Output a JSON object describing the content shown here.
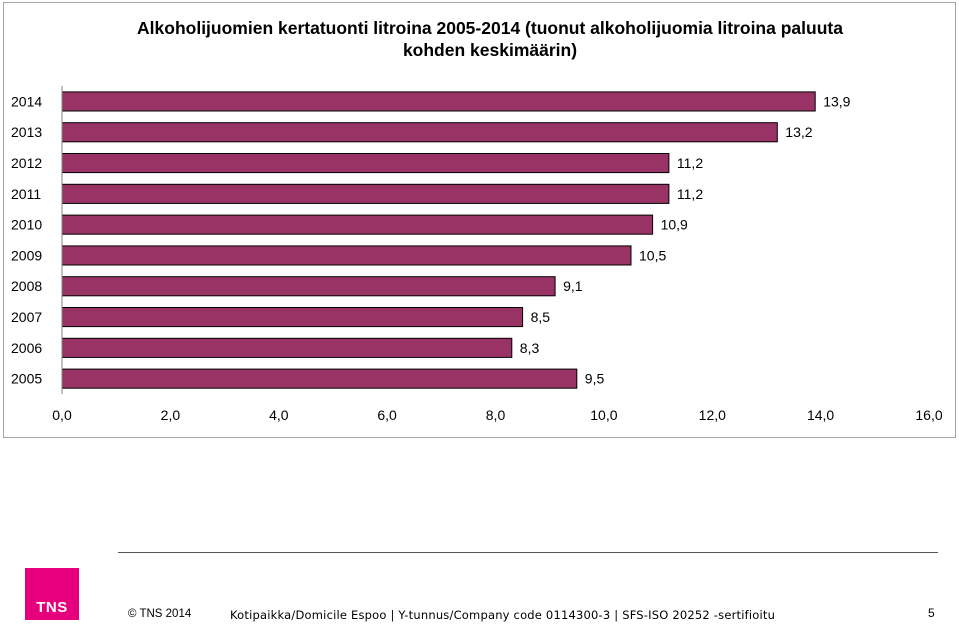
{
  "chart_data": {
    "type": "bar",
    "orientation": "horizontal",
    "title": "Alkoholijuomien kertatuonti litroina 2005-2014 (tuonut alkoholijuomia litroina paluuta kohden keskimäärin)",
    "categories": [
      "2014",
      "2013",
      "2012",
      "2011",
      "2010",
      "2009",
      "2008",
      "2007",
      "2006",
      "2005"
    ],
    "values": [
      13.9,
      13.2,
      11.2,
      11.2,
      10.9,
      10.5,
      9.1,
      8.5,
      8.3,
      9.5
    ],
    "data_labels": [
      "13,9",
      "13,2",
      "11,2",
      "11,2",
      "10,9",
      "10,5",
      "9,1",
      "8,5",
      "8,3",
      "9,5"
    ],
    "xlim": [
      0,
      16
    ],
    "x_ticks": [
      "0,0",
      "2,0",
      "4,0",
      "6,0",
      "8,0",
      "10,0",
      "12,0",
      "14,0",
      "16,0"
    ],
    "x_tick_values": [
      0,
      2,
      4,
      6,
      8,
      10,
      12,
      14,
      16
    ],
    "xlabel": "",
    "ylabel": "",
    "grid": false,
    "bar_color": "#993366"
  },
  "footer": {
    "logo_text": "TNS",
    "copyright": "© TNS 2014",
    "info": "Kotipaikka/Domicile Espoo | Y-tunnus/Company code 0114300-3 | SFS-ISO 20252 -sertifioitu",
    "page_number": "5"
  },
  "colors": {
    "brand": "#e6007e"
  }
}
